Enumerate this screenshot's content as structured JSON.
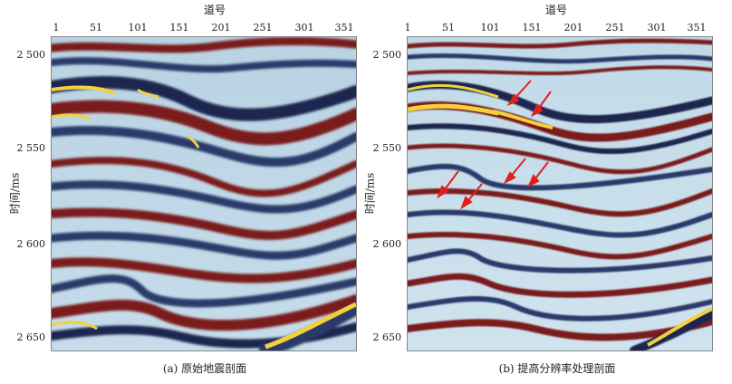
{
  "panels": [
    {
      "id": "a",
      "x_axis_title": "道号",
      "x_ticks": [
        "1",
        "51",
        "101",
        "151",
        "201",
        "251",
        "301",
        "351"
      ],
      "y_axis_title": "时间/ms",
      "y_ticks": [
        "2 500",
        "2 550",
        "2 600",
        "2 650"
      ],
      "caption": "(a) 原始地震剖面"
    },
    {
      "id": "b",
      "x_axis_title": "道号",
      "x_ticks": [
        "1",
        "51",
        "101",
        "151",
        "201",
        "251",
        "301",
        "351"
      ],
      "y_axis_title": "时间/ms",
      "y_ticks": [
        "2 500",
        "2 550",
        "2 600",
        "2 650"
      ],
      "caption": "(b) 提高分辨率处理剖面"
    }
  ],
  "colors": {
    "red_band": "#7a1c1c",
    "blue_band": "#2a3a6a",
    "light": "#cfe3ee",
    "yellow": "#f2d23a",
    "arrow": "#e01f1f"
  }
}
